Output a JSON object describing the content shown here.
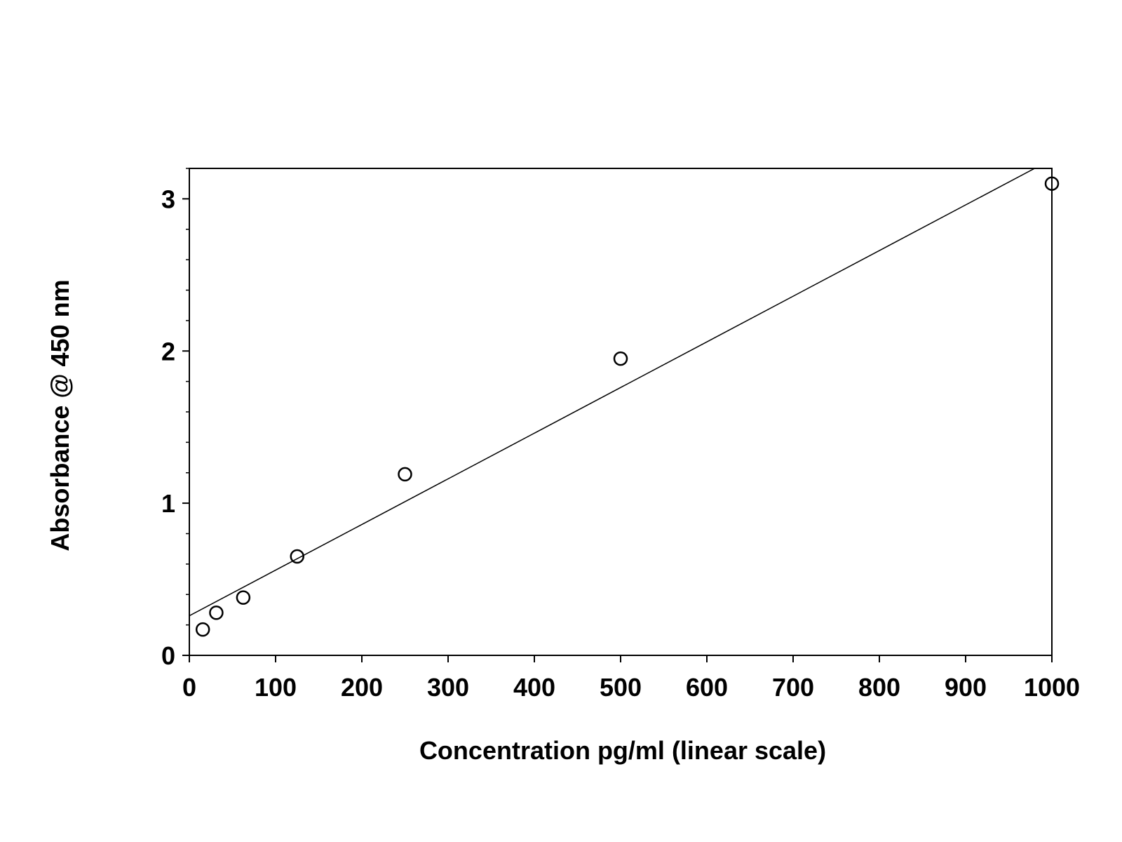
{
  "chart_data": {
    "type": "scatter",
    "title": "",
    "xlabel": "Concentration pg/ml (linear scale)",
    "ylabel": "Absorbance @ 450 nm",
    "xlim": [
      0,
      1000
    ],
    "ylim": [
      0,
      3.2
    ],
    "xticks": [
      0,
      100,
      200,
      300,
      400,
      500,
      600,
      700,
      800,
      900,
      1000
    ],
    "yticks": [
      0,
      1,
      2,
      3
    ],
    "y_minor_step": 0.2,
    "grid": false,
    "legend": "none",
    "series": [
      {
        "marker": "open-circle",
        "x": [
          15.6,
          31.25,
          62.5,
          125,
          250,
          500,
          1000
        ],
        "y": [
          0.17,
          0.28,
          0.38,
          0.65,
          1.19,
          1.95,
          3.1
        ]
      }
    ],
    "fit_line": {
      "type": "linear",
      "intercept": 0.26,
      "slope": 0.003
    },
    "colors": {
      "line": "#000000",
      "marker": "#000000",
      "background": "#ffffff"
    }
  }
}
